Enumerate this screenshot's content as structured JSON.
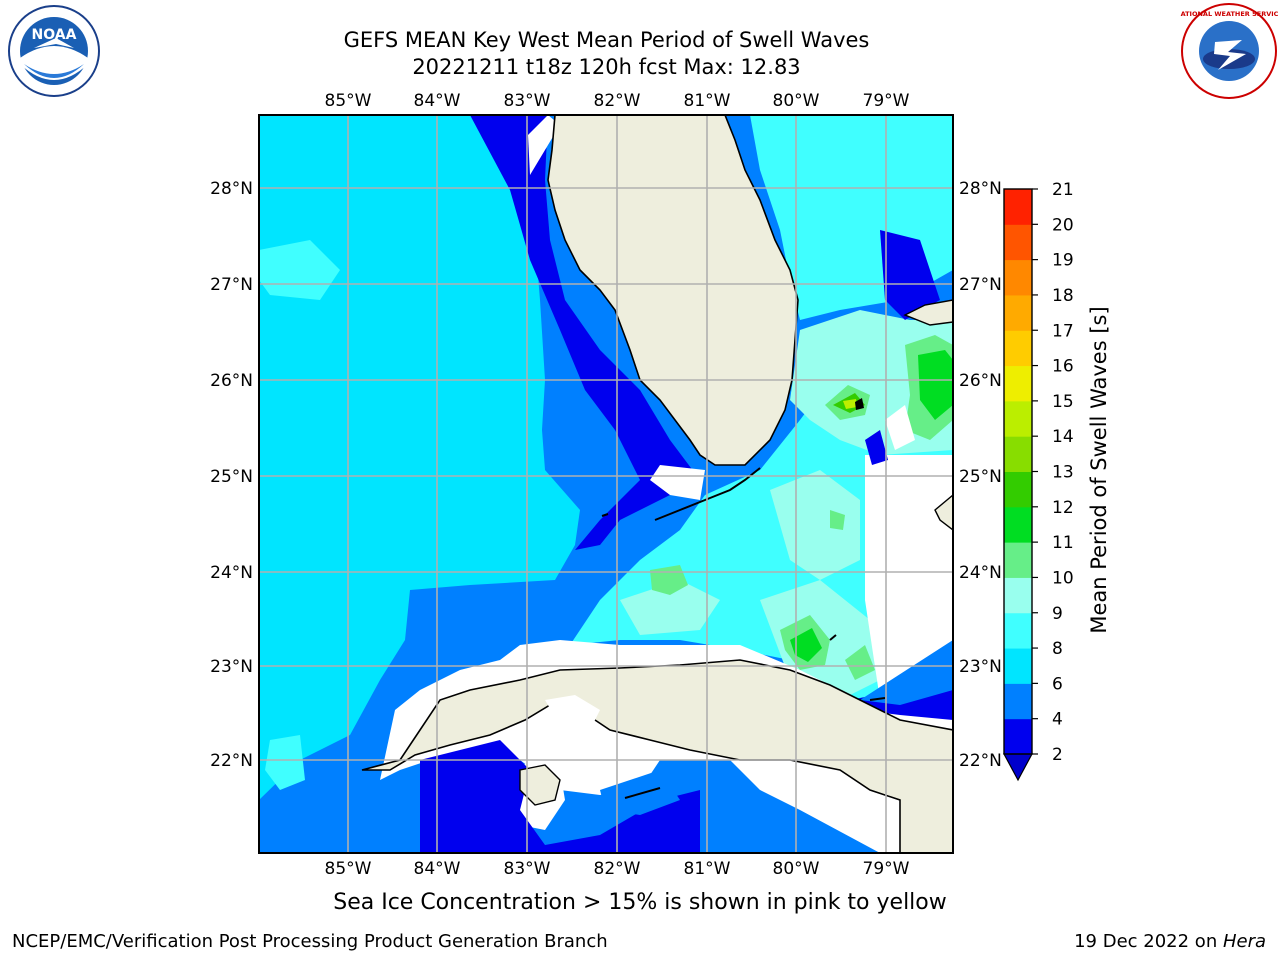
{
  "title": {
    "line1": "GEFS MEAN Key West Mean Period of Swell Waves",
    "line2": "20221211 t18z 120h fcst   Max: 12.83"
  },
  "map": {
    "lon_labels": [
      "85°W",
      "84°W",
      "83°W",
      "82°W",
      "81°W",
      "80°W",
      "79°W"
    ],
    "lat_labels": [
      "28°N",
      "27°N",
      "26°N",
      "25°N",
      "24°N",
      "23°N",
      "22°N"
    ],
    "colors": {
      "land": "#eeeedd",
      "coastline": "#000000",
      "gridline": "#b0b0b0"
    }
  },
  "colorbar": {
    "label": "Mean Period of Swell Waves [s]",
    "ticks": [
      "2",
      "4",
      "6",
      "8",
      "9",
      "10",
      "11",
      "12",
      "13",
      "14",
      "15",
      "16",
      "17",
      "18",
      "19",
      "20",
      "21"
    ],
    "colors": [
      "#0000ee",
      "#0080ff",
      "#00e5ff",
      "#40ffff",
      "#99ffee",
      "#66ee88",
      "#00dd22",
      "#33cc00",
      "#88dd00",
      "#bbee00",
      "#eeee00",
      "#ffcc00",
      "#ffaa00",
      "#ff8800",
      "#ff5500",
      "#ff2200",
      "#ff0000"
    ],
    "extend_color": "#0000cc"
  },
  "caption": "Sea Ice Concentration > 15% is shown in pink to yellow",
  "footer": {
    "left": "NCEP/EMC/Verification Post Processing Product Generation Branch",
    "right_prefix": "19 Dec 2022 on ",
    "right_host": "Hera"
  },
  "logos": {
    "noaa_text": "NOAA",
    "nws_text": "NATIONAL WEATHER SERVICE"
  }
}
